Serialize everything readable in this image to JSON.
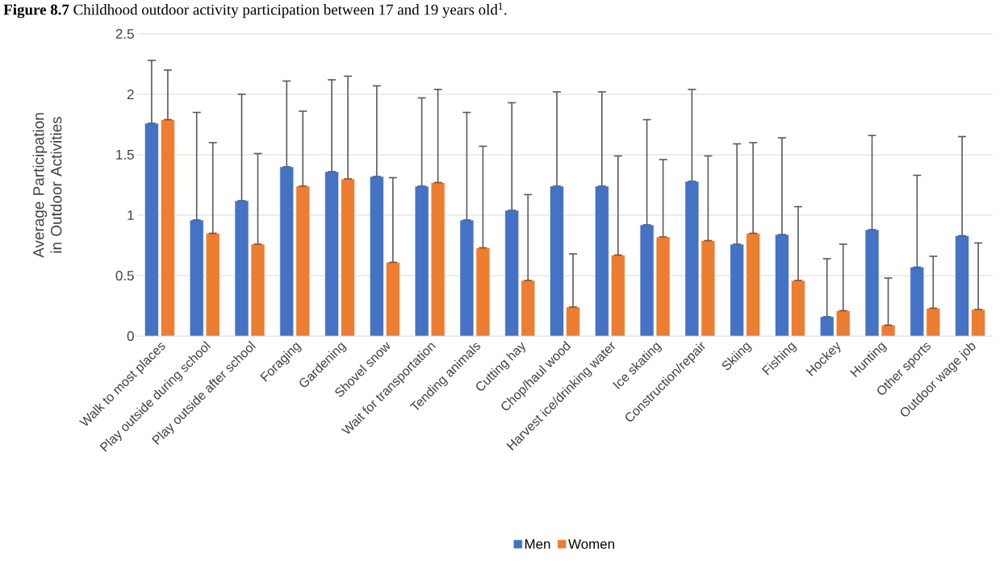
{
  "chart_data": {
    "type": "bar",
    "title": "**Figure 8.7** Childhood outdoor activity participation between 17 and 19 years old$^{1}$.",
    "ylabel": "Average Participation in Outdoor Activities",
    "categories": [
      "Walk to most places",
      "Play outside during school",
      "Play outside after school",
      "Foraging",
      "Gardening",
      "Shovel snow",
      "Wait for transportation",
      "Tending animals",
      "Cutting hay",
      "Chop/haul wood",
      "Harvest ice/drinking water",
      "Ice skating",
      "Construction/repair",
      "Skiing",
      "Fishing",
      "Hockey",
      "Hunting",
      "Other sports",
      "Outdoor wage job"
    ],
    "series": [
      {
        "name": "Men",
        "color": "#4472c4",
        "values": [
          1.76,
          0.96,
          1.12,
          1.4,
          1.36,
          1.32,
          1.24,
          0.96,
          1.04,
          1.24,
          1.24,
          0.92,
          1.28,
          0.76,
          0.84,
          0.16,
          0.88,
          0.57,
          0.83
        ],
        "errors": [
          [
            1.76,
            2.28
          ],
          [
            0.96,
            1.85
          ],
          [
            1.12,
            2.0
          ],
          [
            1.4,
            2.11
          ],
          [
            1.36,
            2.12
          ],
          [
            1.32,
            2.07
          ],
          [
            1.24,
            1.97
          ],
          [
            0.96,
            1.85
          ],
          [
            1.04,
            1.93
          ],
          [
            1.24,
            2.02
          ],
          [
            1.24,
            2.02
          ],
          [
            0.92,
            1.79
          ],
          [
            1.28,
            2.04
          ],
          [
            0.76,
            1.59
          ],
          [
            0.84,
            1.64
          ],
          [
            0.16,
            0.64
          ],
          [
            0.88,
            1.66
          ],
          [
            0.57,
            1.33
          ],
          [
            0.83,
            1.65
          ]
        ]
      },
      {
        "name": "Women",
        "color": "#ed7d31",
        "values": [
          1.79,
          0.85,
          0.76,
          1.24,
          1.3,
          0.61,
          1.27,
          0.73,
          0.46,
          0.24,
          0.67,
          0.82,
          0.79,
          0.85,
          0.46,
          0.21,
          0.09,
          0.23,
          0.22
        ],
        "errors": [
          [
            1.79,
            2.2
          ],
          [
            0.85,
            1.6
          ],
          [
            0.76,
            1.51
          ],
          [
            1.24,
            1.86
          ],
          [
            1.3,
            2.15
          ],
          [
            0.61,
            1.31
          ],
          [
            1.27,
            2.04
          ],
          [
            0.73,
            1.57
          ],
          [
            0.46,
            1.17
          ],
          [
            0.24,
            0.68
          ],
          [
            0.67,
            1.49
          ],
          [
            0.82,
            1.46
          ],
          [
            0.79,
            1.49
          ],
          [
            0.85,
            1.6
          ],
          [
            0.46,
            1.07
          ],
          [
            0.21,
            0.76
          ],
          [
            0.09,
            0.48
          ],
          [
            0.23,
            0.66
          ],
          [
            0.22,
            0.77
          ]
        ]
      }
    ],
    "ylim": [
      0,
      2.5
    ],
    "yticks": [
      0,
      0.5,
      1,
      1.5,
      2,
      2.5
    ],
    "grid": "y",
    "legend": "bottom"
  }
}
